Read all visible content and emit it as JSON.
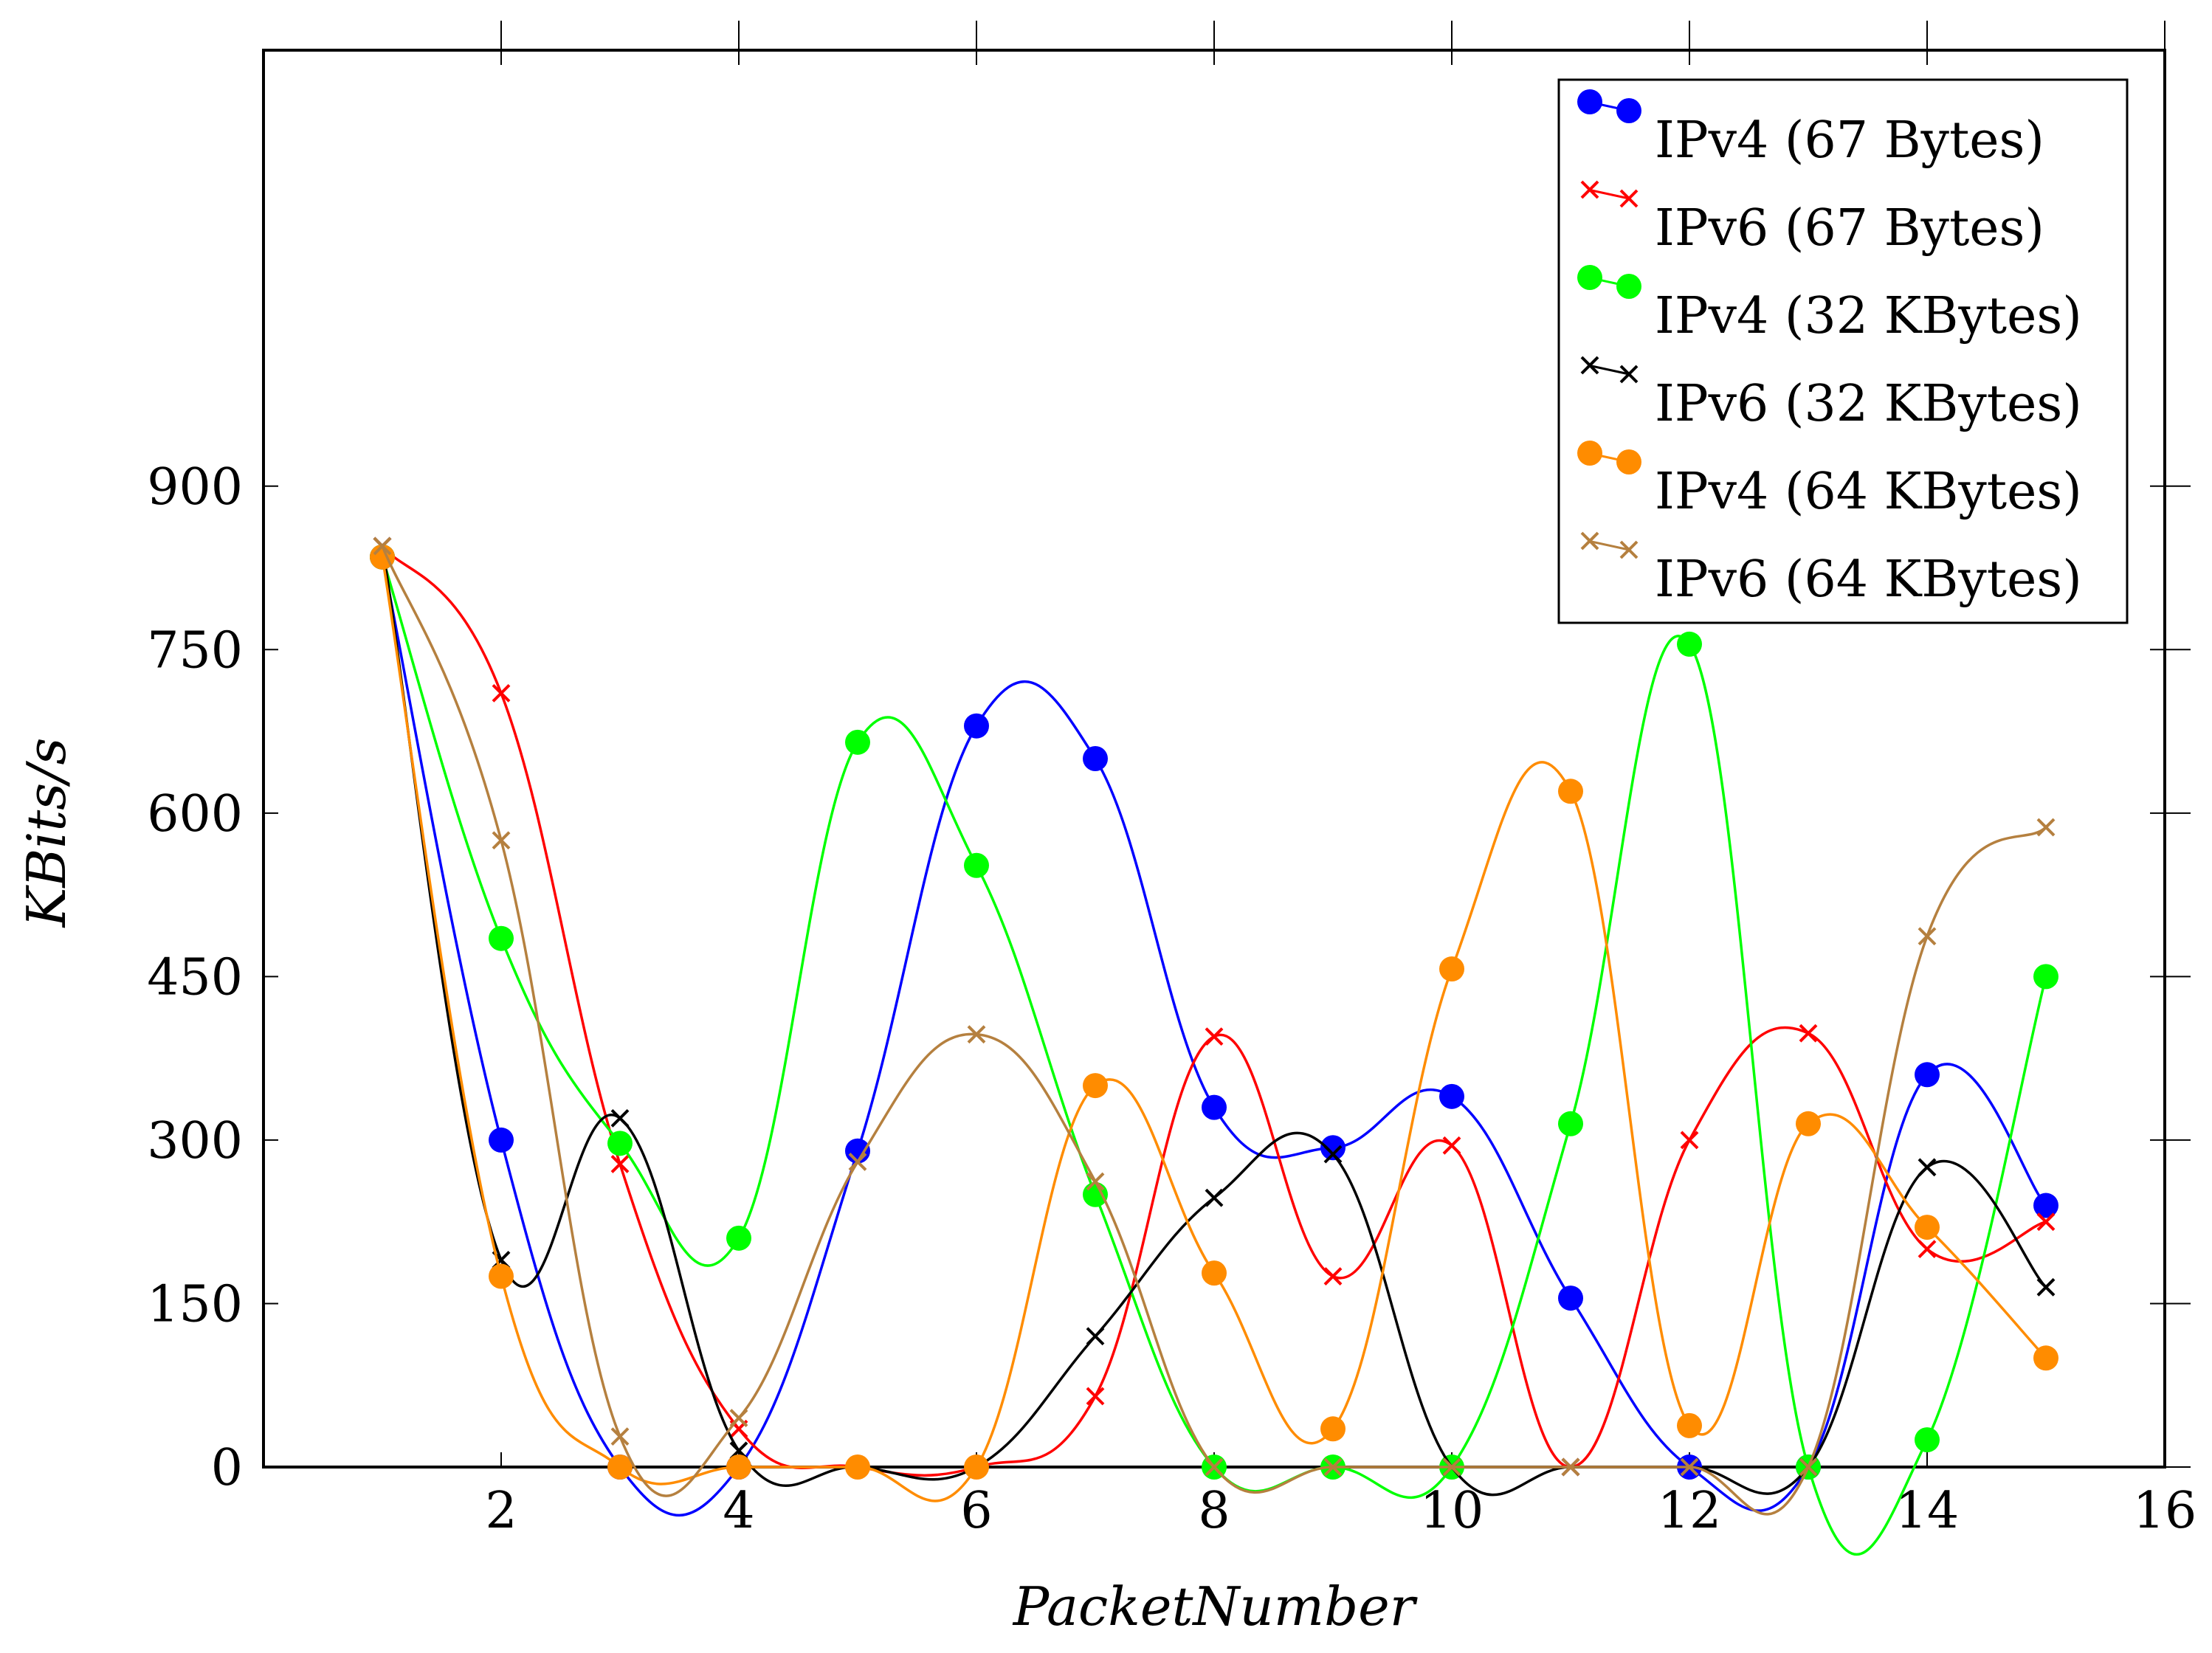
{
  "chart_data": {
    "type": "line",
    "title": "",
    "xlabel": "PacketNumber",
    "ylabel": "KBits/s",
    "xlim": [
      0,
      16
    ],
    "ylim": [
      0,
      1300
    ],
    "xticks": [
      2,
      4,
      6,
      8,
      10,
      12,
      14,
      16
    ],
    "yticks": [
      0,
      150,
      300,
      450,
      600,
      750,
      900
    ],
    "grid": false,
    "legend_position": "top-right",
    "x": [
      1,
      2,
      3,
      4,
      5,
      6,
      7,
      8,
      9,
      10,
      11,
      12,
      13,
      14,
      15
    ],
    "series": [
      {
        "name": "IPv4 (67 Bytes)",
        "color": "#0000ff",
        "marker": "circle",
        "values": [
          835,
          300,
          0,
          0,
          290,
          680,
          650,
          330,
          293,
          340,
          155,
          0,
          0,
          360,
          240
        ]
      },
      {
        "name": "IPv6 (67 Bytes)",
        "color": "#ff0000",
        "marker": "x",
        "values": [
          845,
          710,
          278,
          35,
          0,
          0,
          65,
          395,
          175,
          295,
          0,
          300,
          398,
          200,
          225
        ]
      },
      {
        "name": "IPv4 (32 KBytes)",
        "color": "#00ff00",
        "marker": "circle",
        "values": [
          835,
          485,
          297,
          210,
          665,
          552,
          250,
          0,
          0,
          0,
          315,
          755,
          0,
          25,
          450
        ]
      },
      {
        "name": "IPv6 (32 KBytes)",
        "color": "#000000",
        "marker": "x",
        "values": [
          845,
          190,
          320,
          15,
          0,
          0,
          120,
          247,
          287,
          0,
          0,
          0,
          0,
          275,
          165
        ]
      },
      {
        "name": "IPv4 (64 KBytes)",
        "color": "#ff8c00",
        "marker": "circle",
        "values": [
          835,
          175,
          0,
          0,
          0,
          0,
          350,
          178,
          35,
          457,
          620,
          38,
          315,
          220,
          100
        ]
      },
      {
        "name": "IPv6 (64 KBytes)",
        "color": "#b5803f",
        "marker": "x",
        "values": [
          845,
          575,
          28,
          45,
          280,
          397,
          262,
          0,
          0,
          0,
          0,
          0,
          0,
          487,
          587
        ]
      }
    ]
  }
}
